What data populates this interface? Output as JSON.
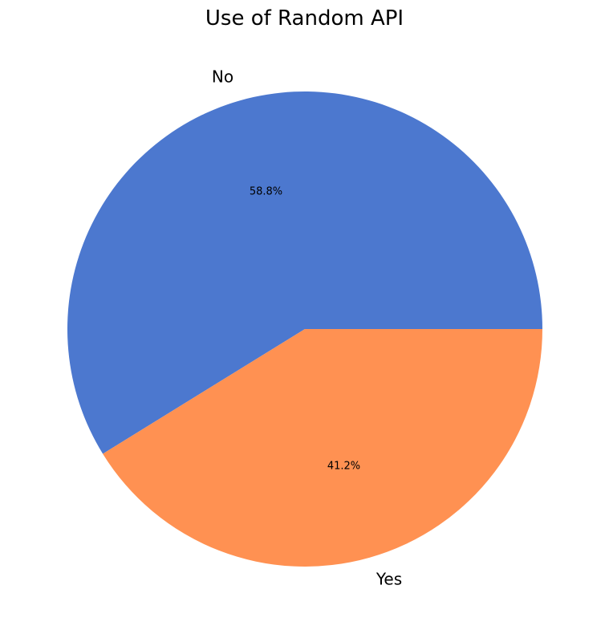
{
  "chart_data": {
    "type": "pie",
    "title": "Use of Random API",
    "categories": [
      "No",
      "Yes"
    ],
    "values": [
      58.8,
      41.2
    ],
    "percent_labels": [
      "58.8%",
      "41.2%"
    ],
    "colors": [
      "#4c78cf",
      "#ff9152"
    ],
    "start_angle": 0,
    "direction": "counterclockwise"
  }
}
